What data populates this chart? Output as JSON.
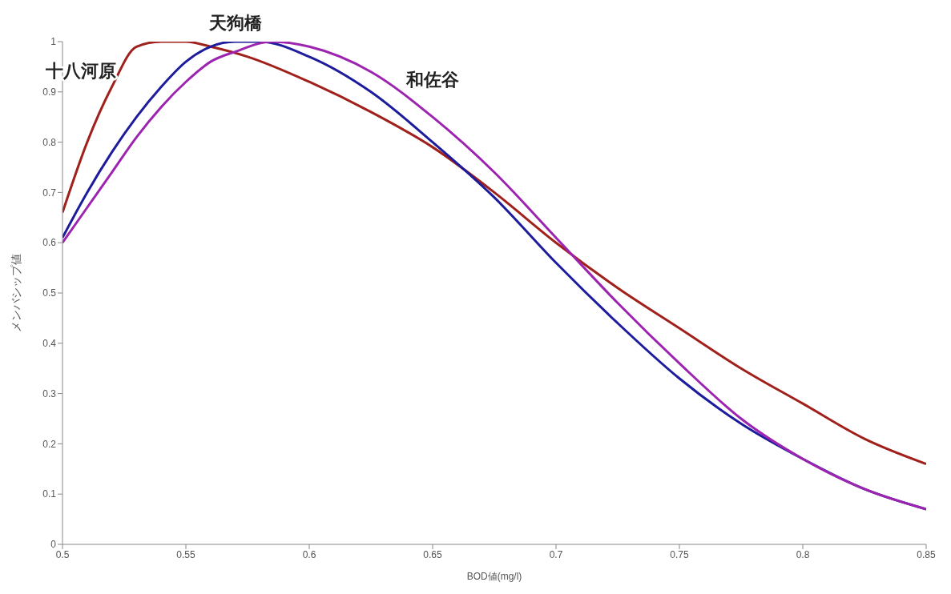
{
  "chart_data": {
    "type": "line",
    "xlabel": "BOD値(mg/l)",
    "ylabel": "メンバシップ値",
    "xlim": [
      0.5,
      0.85
    ],
    "xticks": [
      0.5,
      0.55,
      0.6,
      0.65,
      0.7,
      0.75,
      0.8,
      0.85
    ],
    "ylim": [
      0,
      1
    ],
    "yticks": [
      0,
      0.1,
      0.2,
      0.3,
      0.4,
      0.5,
      0.6,
      0.7,
      0.8,
      0.9,
      1
    ],
    "grid": false,
    "legend": false,
    "marker": "none",
    "line_style": "solid",
    "series": [
      {
        "name": "十八河原",
        "color": "#a0201c",
        "x": [
          0.5,
          0.51,
          0.52,
          0.53,
          0.54,
          0.55,
          0.56,
          0.575,
          0.6,
          0.625,
          0.65,
          0.675,
          0.7,
          0.725,
          0.75,
          0.775,
          0.8,
          0.825,
          0.85
        ],
        "values": [
          0.66,
          0.8,
          0.91,
          0.99,
          1,
          1,
          0.99,
          0.97,
          0.92,
          0.86,
          0.79,
          0.7,
          0.6,
          0.51,
          0.43,
          0.35,
          0.28,
          0.21,
          0.16
        ]
      },
      {
        "name": "天狗橋",
        "color": "#1c1c9c",
        "x": [
          0.5,
          0.51,
          0.52,
          0.53,
          0.54,
          0.55,
          0.56,
          0.57,
          0.58,
          0.6,
          0.625,
          0.65,
          0.675,
          0.7,
          0.725,
          0.75,
          0.775,
          0.8,
          0.825,
          0.85
        ],
        "values": [
          0.61,
          0.7,
          0.78,
          0.85,
          0.91,
          0.96,
          0.99,
          1,
          1,
          0.97,
          0.9,
          0.8,
          0.69,
          0.56,
          0.44,
          0.33,
          0.24,
          0.17,
          0.11,
          0.07
        ]
      },
      {
        "name": "和佐谷",
        "color": "#9c24b0",
        "x": [
          0.5,
          0.51,
          0.52,
          0.53,
          0.54,
          0.55,
          0.56,
          0.57,
          0.585,
          0.6,
          0.625,
          0.65,
          0.675,
          0.7,
          0.725,
          0.75,
          0.775,
          0.8,
          0.825,
          0.85
        ],
        "values": [
          0.6,
          0.67,
          0.74,
          0.81,
          0.87,
          0.92,
          0.96,
          0.98,
          1,
          0.99,
          0.94,
          0.85,
          0.74,
          0.61,
          0.48,
          0.36,
          0.25,
          0.17,
          0.11,
          0.07
        ]
      }
    ]
  }
}
